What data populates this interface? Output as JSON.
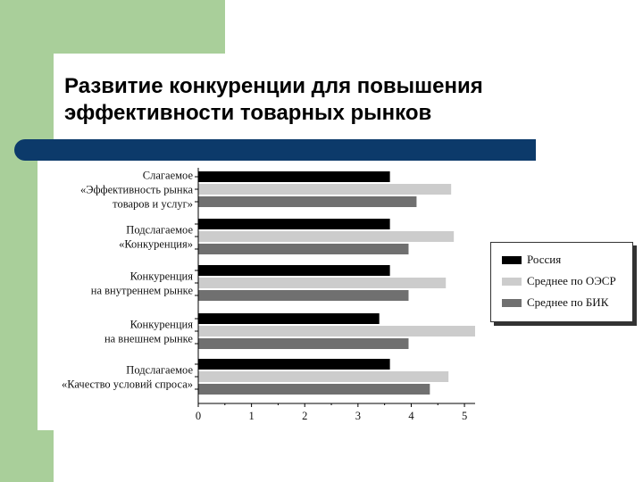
{
  "slide": {
    "title": "Развитие конкуренции для повышения эффективности товарных рынков",
    "accent_green": "#a9cf9a",
    "accent_blue": "#0c3a6a"
  },
  "chart_data": {
    "type": "bar",
    "orientation": "horizontal",
    "categories": [
      [
        "Слагаемое",
        "«Эффективность рынка",
        "товаров и  услуг»"
      ],
      [
        "Подслагаемое",
        "«Конкуренция»"
      ],
      [
        "Конкуренция",
        "на внутреннем рынке"
      ],
      [
        "Конкуренция",
        "на внешнем рынке"
      ],
      [
        "Подслагаемое",
        "«Качество условий спроса»"
      ]
    ],
    "series": [
      {
        "name": "Россия",
        "color": "#000000",
        "values": [
          3.6,
          3.6,
          3.6,
          3.4,
          3.6
        ]
      },
      {
        "name": "Среднее по ОЭСР",
        "color": "#cccccc",
        "values": [
          4.75,
          4.8,
          4.65,
          5.2,
          4.7
        ]
      },
      {
        "name": "Среднее по БИК",
        "color": "#707070",
        "values": [
          4.1,
          3.95,
          3.95,
          3.95,
          4.35
        ]
      }
    ],
    "xlim": [
      0,
      5.2
    ],
    "xticks": [
      "0",
      "1",
      "2",
      "3",
      "4",
      "5"
    ],
    "grid": false,
    "legend_position": "right"
  }
}
